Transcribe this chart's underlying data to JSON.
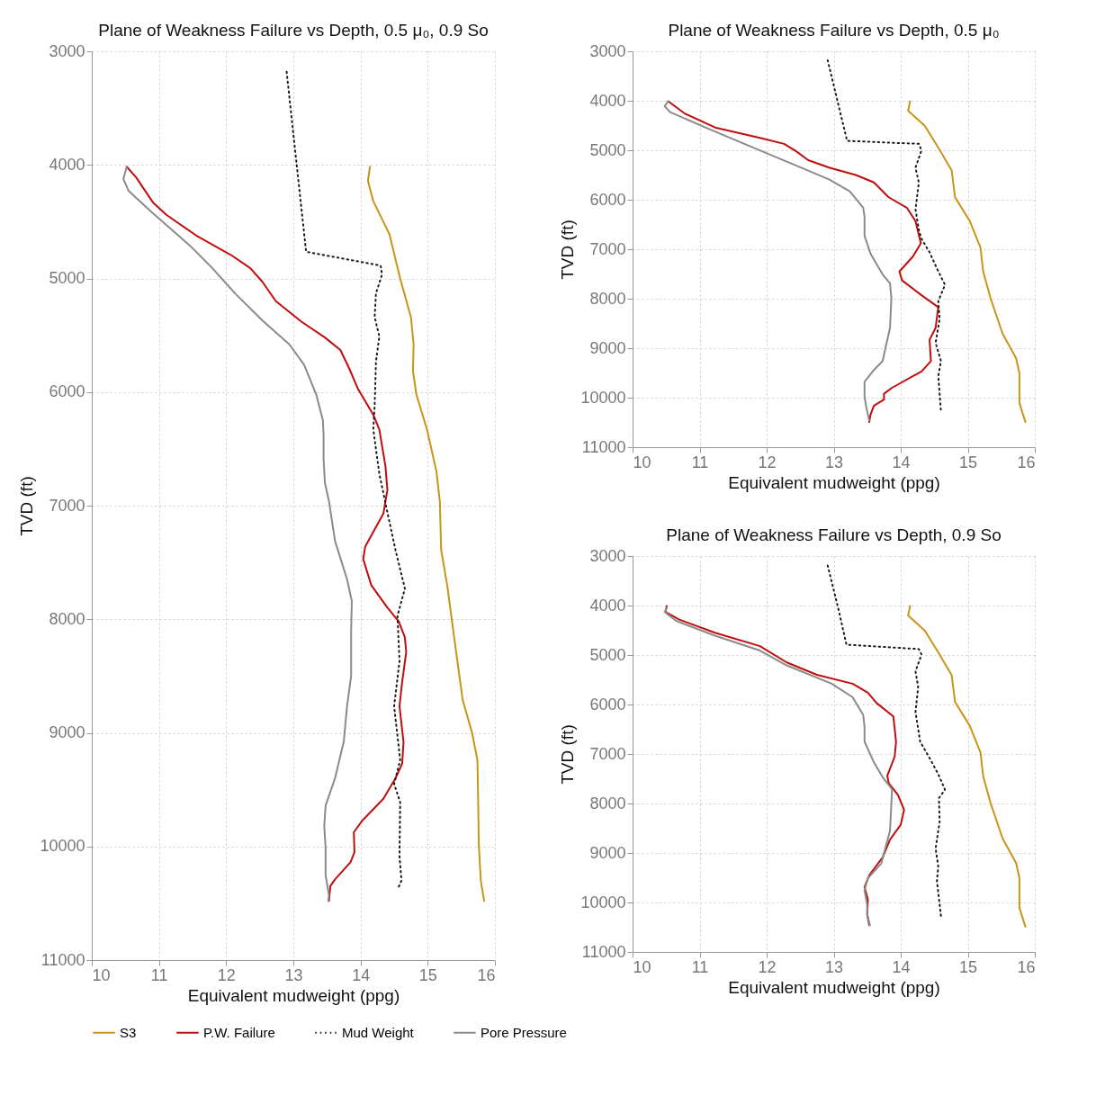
{
  "chart_data": [
    {
      "type": "line",
      "title": "Plane of Weakness Failure vs Depth, 0.5 μ₀, 0.9 So",
      "xlabel": "Equivalent mudweight (ppg)",
      "ylabel": "TVD (ft)",
      "xlim": [
        10,
        16
      ],
      "ylim": [
        11000,
        3000
      ],
      "xticks": [
        10,
        11,
        12,
        13,
        14,
        15,
        16
      ],
      "yticks": [
        3000,
        4000,
        5000,
        6000,
        7000,
        8000,
        9000,
        10000,
        11000
      ],
      "grid": true,
      "legend": "bottom",
      "series": [
        {
          "name": "S3",
          "color": "#c99418",
          "line_style": "solid",
          "x": [
            14.14,
            14.11,
            14.19,
            14.43,
            14.59,
            14.75,
            14.79,
            14.78,
            14.83,
            14.99,
            15.13,
            15.18,
            15.2,
            15.29,
            15.38,
            15.52,
            15.66,
            15.74,
            15.75,
            15.76,
            15.79,
            15.84
          ],
          "values": [
            4016,
            4140,
            4320,
            4610,
            5000,
            5340,
            5580,
            5810,
            6020,
            6330,
            6700,
            6960,
            7390,
            7700,
            8100,
            8710,
            9000,
            9240,
            9560,
            9980,
            10300,
            10480
          ]
        },
        {
          "name": "P.W. Failure",
          "color": "#c00d0d",
          "line_style": "solid",
          "x": [
            10.52,
            10.66,
            10.91,
            11.11,
            11.55,
            12.09,
            12.36,
            12.54,
            12.74,
            13.12,
            13.47,
            13.7,
            13.83,
            13.96,
            14.19,
            14.28,
            14.37,
            14.4,
            14.34,
            14.07,
            14.04,
            14.16,
            14.39,
            14.57,
            14.66,
            14.68,
            14.62,
            14.58,
            14.64,
            14.62,
            14.52,
            14.34,
            14.03,
            13.9,
            13.91,
            13.85,
            13.62,
            13.55,
            13.53
          ],
          "values": [
            4016,
            4110,
            4330,
            4440,
            4620,
            4800,
            4910,
            5030,
            5200,
            5380,
            5520,
            5630,
            5790,
            5970,
            6200,
            6330,
            6650,
            6860,
            7070,
            7360,
            7470,
            7700,
            7890,
            8020,
            8160,
            8290,
            8550,
            8765,
            9080,
            9270,
            9400,
            9580,
            9770,
            9875,
            10050,
            10140,
            10290,
            10350,
            10480
          ]
        },
        {
          "name": "Mud Weight",
          "color": "#1a1a1a",
          "line_style": "dotted",
          "x": [
            12.9,
            13.19,
            14.3,
            14.32,
            14.23,
            14.21,
            14.28,
            14.23,
            14.21,
            14.19,
            14.28,
            14.39,
            14.52,
            14.66,
            14.55,
            14.58,
            14.5,
            14.59,
            14.5,
            14.59,
            14.58,
            14.61,
            14.55
          ],
          "values": [
            3180,
            4765,
            4887,
            4965,
            5130,
            5340,
            5510,
            5730,
            6120,
            6330,
            6720,
            7030,
            7390,
            7730,
            7970,
            8370,
            8765,
            9240,
            9450,
            9610,
            10090,
            10300,
            10380
          ]
        },
        {
          "name": "Pore Pressure",
          "color": "#8a8a8a",
          "line_style": "solid",
          "x": [
            10.52,
            10.47,
            10.55,
            10.88,
            11.46,
            11.78,
            12.13,
            12.54,
            12.94,
            13.16,
            13.34,
            13.44,
            13.45,
            13.45,
            13.47,
            13.53,
            13.62,
            13.8,
            13.87,
            13.86,
            13.86,
            13.8,
            13.75,
            13.62,
            13.48,
            13.46,
            13.48,
            13.48,
            13.53,
            13.52
          ],
          "values": [
            4016,
            4125,
            4230,
            4410,
            4710,
            4900,
            5130,
            5370,
            5580,
            5760,
            6020,
            6250,
            6380,
            6590,
            6800,
            6960,
            7310,
            7650,
            7840,
            8100,
            8500,
            8760,
            9080,
            9400,
            9640,
            9820,
            10010,
            10250,
            10430,
            10480
          ]
        }
      ]
    },
    {
      "type": "line",
      "title": "Plane of Weakness Failure vs Depth, 0.5 μ₀",
      "xlabel": "Equivalent mudweight (ppg)",
      "ylabel": "TVD (ft)",
      "xlim": [
        10,
        16
      ],
      "ylim": [
        11000,
        3000
      ],
      "xticks": [
        10,
        11,
        12,
        13,
        14,
        15,
        16
      ],
      "yticks": [
        3000,
        4000,
        5000,
        6000,
        7000,
        8000,
        9000,
        10000,
        11000
      ],
      "grid": true,
      "legend": "bottom",
      "series": [
        {
          "name": "S3",
          "color": "#c99418",
          "line_style": "solid",
          "x": [
            14.14,
            14.11,
            14.36,
            14.58,
            14.76,
            14.81,
            15.03,
            15.19,
            15.23,
            15.34,
            15.52,
            15.72,
            15.77,
            15.77,
            15.81,
            15.86
          ],
          "values": [
            4010,
            4200,
            4510,
            4990,
            5410,
            5950,
            6430,
            6970,
            7450,
            7990,
            8710,
            9200,
            9500,
            10100,
            10280,
            10490
          ]
        },
        {
          "name": "P.W. Failure",
          "color": "#c00d0d",
          "line_style": "solid",
          "x": [
            10.53,
            10.78,
            11.23,
            11.9,
            12.26,
            12.44,
            12.62,
            12.93,
            13.33,
            13.6,
            13.82,
            14.09,
            14.22,
            14.3,
            14.18,
            13.98,
            14.02,
            14.31,
            14.56,
            14.52,
            14.43,
            14.45,
            14.31,
            13.87,
            13.75,
            13.75,
            13.6,
            13.55,
            13.53
          ],
          "values": [
            4010,
            4260,
            4540,
            4750,
            4870,
            5020,
            5200,
            5350,
            5500,
            5650,
            5950,
            6160,
            6430,
            6880,
            7150,
            7450,
            7630,
            7930,
            8170,
            8590,
            8830,
            9260,
            9470,
            9800,
            9920,
            10040,
            10160,
            10340,
            10490
          ]
        },
        {
          "name": "Mud Weight",
          "color": "#1a1a1a",
          "line_style": "dotted",
          "x": [
            12.91,
            13.07,
            13.2,
            14.27,
            14.31,
            14.22,
            14.27,
            14.22,
            14.27,
            14.31,
            14.43,
            14.54,
            14.66,
            14.56,
            14.58,
            14.52,
            14.6,
            14.56,
            14.6
          ],
          "values": [
            3180,
            4080,
            4810,
            4870,
            5000,
            5350,
            5650,
            6190,
            6610,
            6790,
            7060,
            7390,
            7720,
            8050,
            8410,
            8890,
            9260,
            9560,
            10280
          ]
        },
        {
          "name": "Pore Pressure",
          "color": "#8a8a8a",
          "line_style": "solid",
          "x": [
            10.53,
            10.48,
            10.56,
            11.14,
            11.77,
            12.3,
            12.93,
            13.24,
            13.44,
            13.46,
            13.46,
            13.55,
            13.73,
            13.84,
            13.86,
            13.84,
            13.78,
            13.73,
            13.6,
            13.46,
            13.46,
            13.49,
            13.53
          ],
          "values": [
            4010,
            4110,
            4230,
            4570,
            4930,
            5230,
            5590,
            5830,
            6160,
            6340,
            6730,
            7090,
            7510,
            7690,
            7990,
            8590,
            8950,
            9260,
            9440,
            9680,
            9980,
            10220,
            10460
          ]
        }
      ]
    },
    {
      "type": "line",
      "title": "Plane of Weakness Failure vs Depth, 0.9 So",
      "xlabel": "Equivalent mudweight (ppg)",
      "ylabel": "TVD (ft)",
      "xlim": [
        10,
        16
      ],
      "ylim": [
        11000,
        3000
      ],
      "xticks": [
        10,
        11,
        12,
        13,
        14,
        15,
        16
      ],
      "yticks": [
        3000,
        4000,
        5000,
        6000,
        7000,
        8000,
        9000,
        10000,
        11000
      ],
      "grid": true,
      "legend": "bottom",
      "series": [
        {
          "name": "S3",
          "color": "#c99418",
          "line_style": "solid",
          "x": [
            14.14,
            14.11,
            14.36,
            14.58,
            14.76,
            14.81,
            15.03,
            15.19,
            15.23,
            15.34,
            15.52,
            15.72,
            15.77,
            15.77,
            15.81,
            15.86
          ],
          "values": [
            4010,
            4200,
            4510,
            4990,
            5410,
            5950,
            6430,
            6970,
            7450,
            7990,
            8710,
            9200,
            9500,
            10100,
            10280,
            10490
          ]
        },
        {
          "name": "P.W. Failure",
          "color": "#c00d0d",
          "line_style": "solid",
          "x": [
            10.51,
            10.49,
            10.69,
            11.23,
            11.9,
            12.3,
            12.75,
            13.28,
            13.51,
            13.64,
            13.89,
            13.93,
            13.91,
            13.8,
            13.82,
            13.96,
            14.05,
            14.0,
            13.84,
            13.73,
            13.53,
            13.46,
            13.51,
            13.5,
            13.53
          ],
          "values": [
            4010,
            4130,
            4280,
            4550,
            4820,
            5150,
            5400,
            5580,
            5760,
            5970,
            6240,
            6750,
            7050,
            7440,
            7590,
            7830,
            8130,
            8430,
            8730,
            9090,
            9450,
            9690,
            9940,
            10240,
            10460
          ]
        },
        {
          "name": "Mud Weight",
          "color": "#1a1a1a",
          "line_style": "dotted",
          "x": [
            12.91,
            13.07,
            13.19,
            14.27,
            14.31,
            14.22,
            14.26,
            14.22,
            14.29,
            14.43,
            14.56,
            14.66,
            14.57,
            14.58,
            14.52,
            14.56,
            14.54,
            14.6
          ],
          "values": [
            3190,
            4070,
            4790,
            4880,
            4990,
            5330,
            5640,
            6150,
            6750,
            7080,
            7410,
            7720,
            7890,
            8370,
            8910,
            9270,
            9570,
            10270
          ]
        },
        {
          "name": "Pore Pressure",
          "color": "#8a8a8a",
          "line_style": "solid",
          "x": [
            10.51,
            10.48,
            10.65,
            11.23,
            11.9,
            12.3,
            12.97,
            13.28,
            13.44,
            13.46,
            13.46,
            13.6,
            13.73,
            13.87,
            13.86,
            13.84,
            13.78,
            13.71,
            13.51,
            13.46,
            13.5,
            13.5,
            13.54
          ],
          "values": [
            4040,
            4130,
            4310,
            4610,
            4910,
            5210,
            5580,
            5850,
            6210,
            6450,
            6750,
            7170,
            7470,
            7710,
            8010,
            8550,
            8850,
            9210,
            9510,
            9750,
            10060,
            10240,
            10460
          ]
        }
      ]
    }
  ]
}
